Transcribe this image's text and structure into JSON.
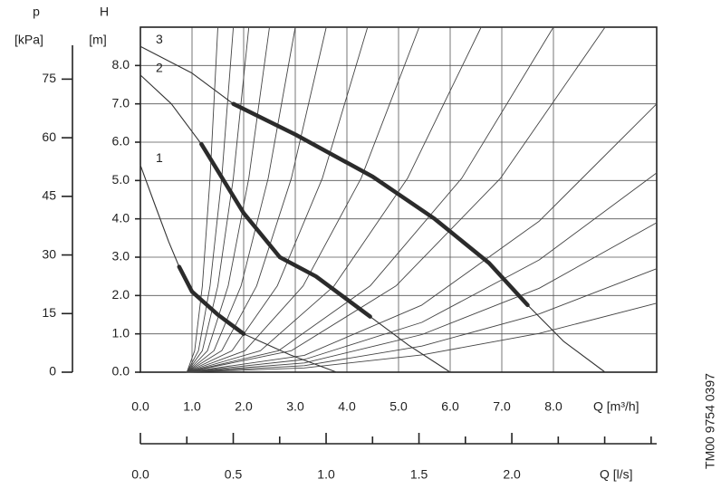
{
  "chart_data": {
    "type": "line",
    "y_label": "H",
    "y_unit": "[m]",
    "p_label": "p",
    "p_unit": "[kPa]",
    "x_label": "Q [m³/h]",
    "x2_label": "Q [l/s]",
    "code": "TM00 9754 0397",
    "xlim": [
      0,
      10
    ],
    "ylim": [
      0,
      9
    ],
    "xticks": [
      {
        "value": 0,
        "label": "0.0"
      },
      {
        "value": 1,
        "label": "1.0"
      },
      {
        "value": 2,
        "label": "2.0"
      },
      {
        "value": 3,
        "label": "3.0"
      },
      {
        "value": 4,
        "label": "4.0"
      },
      {
        "value": 5,
        "label": "5.0"
      },
      {
        "value": 6,
        "label": "6.0"
      },
      {
        "value": 7,
        "label": "7.0"
      },
      {
        "value": 8,
        "label": "8.0"
      }
    ],
    "yticks": [
      {
        "value": 0,
        "label": "0.0"
      },
      {
        "value": 1,
        "label": "1.0"
      },
      {
        "value": 2,
        "label": "2.0"
      },
      {
        "value": 3,
        "label": "3.0"
      },
      {
        "value": 4,
        "label": "4.0"
      },
      {
        "value": 5,
        "label": "5.0"
      },
      {
        "value": 6,
        "label": "6.0"
      },
      {
        "value": 7,
        "label": "7.0"
      },
      {
        "value": 8,
        "label": "8.0"
      }
    ],
    "plim": [
      0,
      88.3
    ],
    "pticks": [
      0,
      15,
      30,
      45,
      60,
      75
    ],
    "x2lim": [
      0,
      2.78
    ],
    "x2ticks": [
      {
        "value": 0,
        "label": "0.0"
      },
      {
        "value": 0.5,
        "label": "0.5"
      },
      {
        "value": 1,
        "label": "1.0"
      },
      {
        "value": 1.5,
        "label": "1.5"
      },
      {
        "value": 2,
        "label": "2.0"
      }
    ],
    "x2minorticks": [
      0.25,
      0.75,
      1.25,
      1.75,
      2.25,
      2.5,
      2.75
    ],
    "grid": true,
    "series": [
      {
        "name": "1",
        "color": "#333333",
        "x": [
          0,
          0.3,
          0.55,
          0.75,
          1.0,
          1.5,
          2.0,
          2.9,
          3.8
        ],
        "values": [
          5.4,
          4.3,
          3.4,
          2.75,
          2.1,
          1.5,
          1.0,
          0.45,
          0
        ]
      },
      {
        "name": "2",
        "color": "#333333",
        "x": [
          0,
          0.6,
          1.18,
          2.0,
          2.7,
          3.4,
          4.45,
          5.2,
          6.0
        ],
        "values": [
          7.75,
          7.0,
          5.95,
          4.15,
          3.0,
          2.5,
          1.45,
          0.7,
          0
        ]
      },
      {
        "name": "3",
        "color": "#333333",
        "x": [
          0,
          1.0,
          1.8,
          3.0,
          4.5,
          5.7,
          6.75,
          7.5,
          8.2,
          9.0
        ],
        "values": [
          8.5,
          7.8,
          7.0,
          6.2,
          5.1,
          4.0,
          2.85,
          1.75,
          0.8,
          0
        ]
      }
    ],
    "operating_curves": [
      {
        "color": "#2b2b2b",
        "x": [
          0.75,
          1.0,
          1.5,
          2.0
        ],
        "values": [
          2.75,
          2.1,
          1.5,
          1.0
        ]
      },
      {
        "color": "#2b2b2b",
        "x": [
          1.18,
          2.0,
          2.7,
          3.4,
          4.45
        ],
        "values": [
          5.95,
          4.15,
          3.0,
          2.5,
          1.45
        ]
      },
      {
        "color": "#2b2b2b",
        "x": [
          1.8,
          3.0,
          4.5,
          5.7,
          6.75,
          7.5
        ],
        "values": [
          7.0,
          6.2,
          5.1,
          4.0,
          2.85,
          1.75
        ]
      }
    ],
    "system_curves": [
      {
        "x": [
          0.9,
          1.05,
          1.2,
          1.35,
          1.5
        ],
        "values": [
          0,
          0.56,
          2.25,
          5.06,
          9
        ]
      },
      {
        "x": [
          0.9,
          1.125,
          1.35,
          1.575,
          1.8
        ],
        "values": [
          0,
          0.56,
          2.25,
          5.06,
          9
        ]
      },
      {
        "x": [
          0.9,
          1.2,
          1.5,
          1.8,
          2.1
        ],
        "values": [
          0,
          0.56,
          2.25,
          5.06,
          9
        ]
      },
      {
        "x": [
          0.9,
          1.3,
          1.7,
          2.1,
          2.5
        ],
        "values": [
          0,
          0.56,
          2.25,
          5.06,
          9
        ]
      },
      {
        "x": [
          0.9,
          1.425,
          1.95,
          2.475,
          3.0
        ],
        "values": [
          0,
          0.56,
          2.25,
          5.06,
          9
        ]
      },
      {
        "x": [
          0.9,
          1.575,
          2.25,
          2.925,
          3.6
        ],
        "values": [
          0,
          0.56,
          2.25,
          5.06,
          9
        ]
      },
      {
        "x": [
          0.9,
          1.775,
          2.65,
          3.525,
          4.4
        ],
        "values": [
          0,
          0.56,
          2.25,
          5.06,
          9
        ]
      },
      {
        "x": [
          0.9,
          2.025,
          3.15,
          4.275,
          5.4
        ],
        "values": [
          0,
          0.56,
          2.25,
          5.06,
          9
        ]
      },
      {
        "x": [
          0.9,
          2.325,
          3.75,
          5.175,
          6.6
        ],
        "values": [
          0,
          0.56,
          2.25,
          5.06,
          9
        ]
      },
      {
        "x": [
          0.9,
          2.675,
          4.45,
          6.225,
          8.0
        ],
        "values": [
          0,
          0.56,
          2.25,
          5.06,
          9
        ]
      },
      {
        "x": [
          0.9,
          2.925,
          4.95,
          6.975,
          9.0
        ],
        "values": [
          0,
          0.56,
          2.25,
          5.06,
          9
        ]
      },
      {
        "x": [
          0.9,
          3.175,
          5.45,
          7.725,
          10
        ],
        "values": [
          0,
          0.44,
          1.75,
          3.94,
          7.0
        ]
      },
      {
        "x": [
          0.9,
          3.175,
          5.45,
          7.725,
          10
        ],
        "values": [
          0,
          0.33,
          1.3,
          2.93,
          5.2
        ]
      },
      {
        "x": [
          0.9,
          3.175,
          5.45,
          7.725,
          10
        ],
        "values": [
          0,
          0.24,
          0.98,
          2.19,
          3.9
        ]
      },
      {
        "x": [
          0.9,
          3.175,
          5.45,
          7.725,
          10
        ],
        "values": [
          0,
          0.17,
          0.68,
          1.52,
          2.7
        ]
      },
      {
        "x": [
          0.9,
          3.175,
          5.45,
          7.725,
          10
        ],
        "values": [
          0,
          0.11,
          0.45,
          1.01,
          1.8
        ]
      }
    ]
  }
}
